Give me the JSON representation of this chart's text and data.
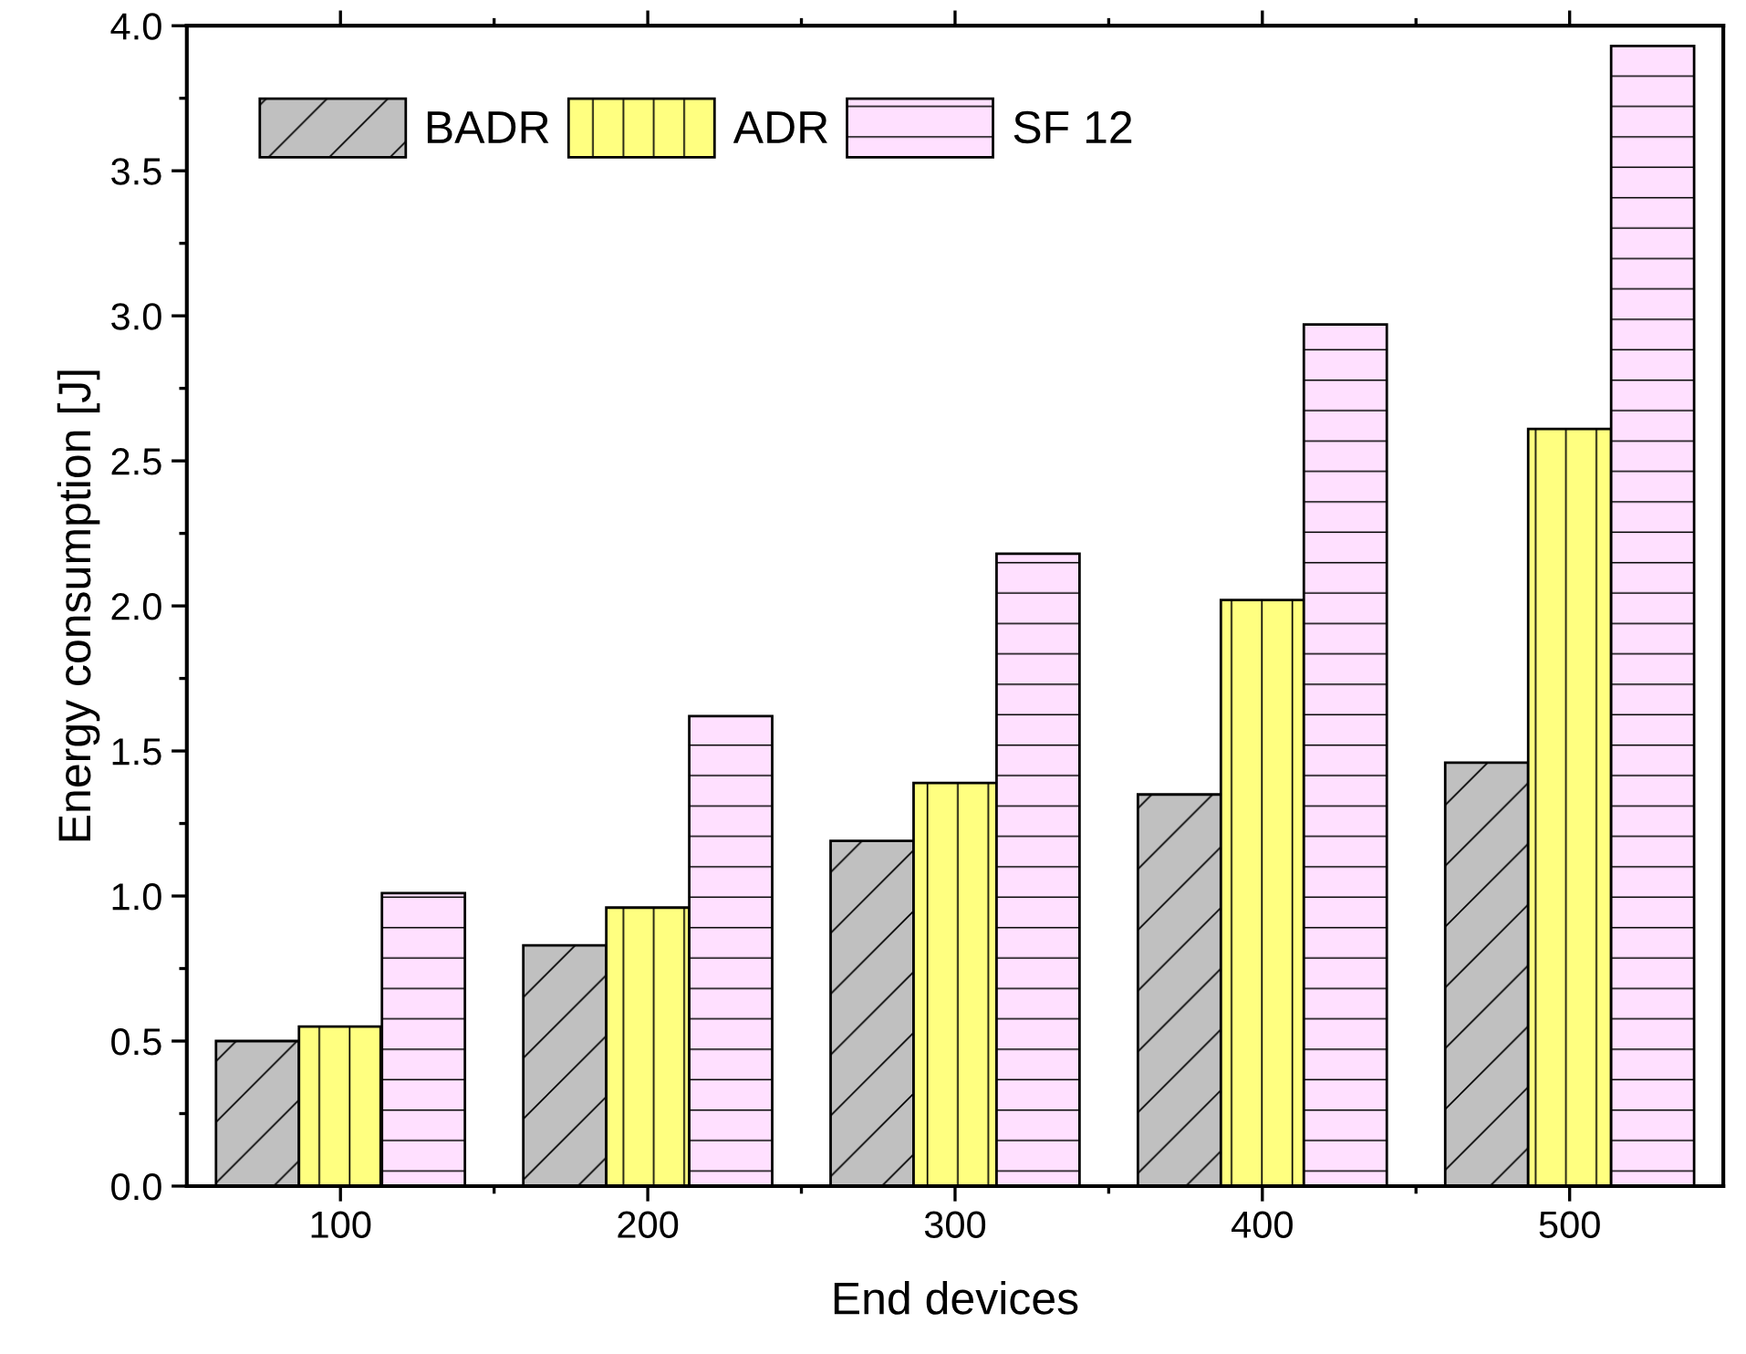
{
  "chart_data": {
    "type": "bar",
    "xlabel": "End devices",
    "ylabel": "Energy consumption [J]",
    "categories": [
      "100",
      "200",
      "300",
      "400",
      "500"
    ],
    "series": [
      {
        "name": "BADR",
        "color": "#c0c0c0",
        "values": [
          0.5,
          0.83,
          1.19,
          1.35,
          1.46
        ]
      },
      {
        "name": "ADR",
        "color": "#ffff80",
        "values": [
          0.55,
          0.96,
          1.39,
          2.02,
          2.61
        ]
      },
      {
        "name": "SF 12",
        "color": "#ffe0ff",
        "values": [
          1.01,
          1.62,
          2.18,
          2.97,
          3.93
        ]
      }
    ],
    "ylim": [
      0,
      4.0
    ],
    "yticks": [
      {
        "value": 0,
        "label": "0.0"
      },
      0.5,
      {
        "value": 1,
        "label": "1.0"
      },
      1.5,
      {
        "value": 2,
        "label": "2.0"
      },
      2.5,
      {
        "value": 3,
        "label": "3.0"
      },
      3.5,
      {
        "value": 4,
        "label": "4.0"
      }
    ],
    "grid": false,
    "legend": "top left"
  }
}
